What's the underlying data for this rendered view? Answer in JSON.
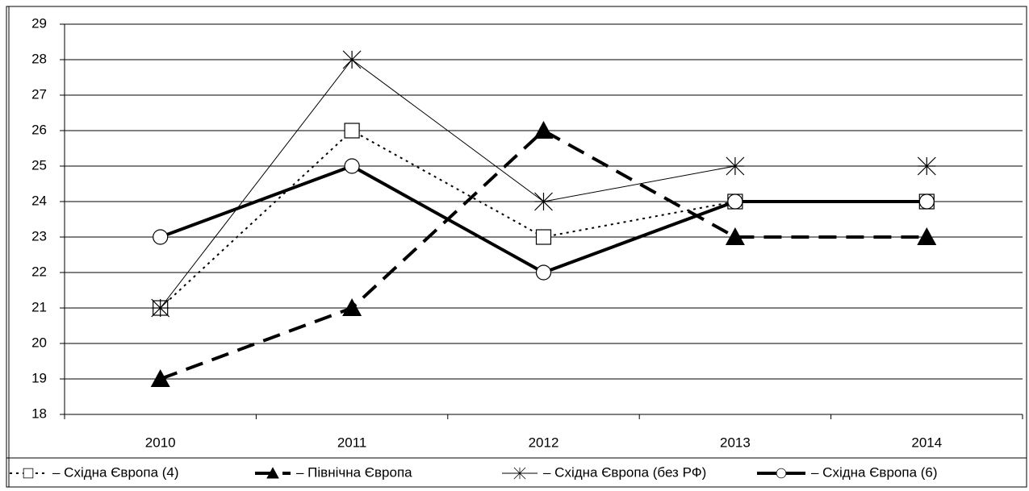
{
  "chart_data": {
    "type": "line",
    "categories": [
      "2010",
      "2011",
      "2012",
      "2013",
      "2014"
    ],
    "series": [
      {
        "name": "– Східна Європа (4)",
        "color": "#000000",
        "dash": "3,5",
        "width": 2,
        "marker": "square",
        "values": [
          21,
          26,
          23,
          24,
          24
        ]
      },
      {
        "name": "– Північна Європа",
        "color": "#000000",
        "dash": "22,12",
        "width": 4,
        "marker": "triangle",
        "values": [
          19,
          21,
          26,
          23,
          23
        ]
      },
      {
        "name": "– Східна Європа (без РФ)",
        "color": "#000000",
        "dash": "none",
        "width": 1,
        "marker": "asterisk",
        "values": [
          21,
          28,
          24,
          25,
          25
        ]
      },
      {
        "name": "– Східна Європа (6)",
        "color": "#000000",
        "dash": "none",
        "width": 4,
        "marker": "circle",
        "values": [
          23,
          25,
          22,
          24,
          24
        ]
      }
    ],
    "ylim": [
      18,
      29
    ],
    "yticks": [
      18,
      19,
      20,
      21,
      22,
      23,
      24,
      25,
      26,
      27,
      28,
      29
    ],
    "grid": true,
    "legend": "bottom"
  }
}
